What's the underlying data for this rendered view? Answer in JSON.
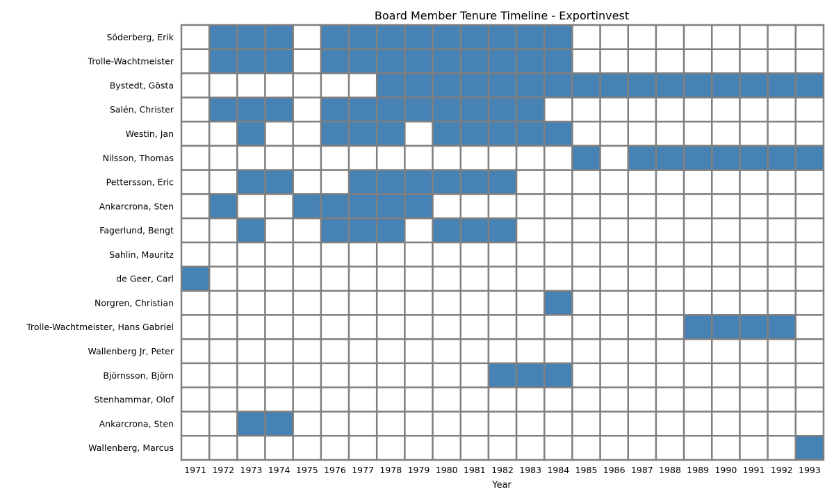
{
  "chart_data": {
    "type": "heatmap",
    "title": "Board Member Tenure Timeline - Exportinvest",
    "xlabel": "Year",
    "ylabel": "",
    "x": [
      "1971",
      "1972",
      "1973",
      "1974",
      "1975",
      "1976",
      "1977",
      "1978",
      "1979",
      "1980",
      "1981",
      "1982",
      "1983",
      "1984",
      "1985",
      "1986",
      "1987",
      "1988",
      "1989",
      "1990",
      "1991",
      "1992",
      "1993"
    ],
    "y": [
      "Söderberg, Erik",
      "Trolle-Wachtmeister",
      "Bystedt, Gösta",
      "Salén, Christer",
      "Westin, Jan",
      "Nilsson, Thomas",
      "Pettersson, Eric",
      "Ankarcrona, Sten",
      "Fagerlund, Bengt",
      "Sahlin, Mauritz",
      "de Geer, Carl",
      "Norgren, Christian",
      "Trolle-Wachtmeister, Hans Gabriel",
      "Wallenberg Jr, Peter",
      "Björnsson, Björn",
      "Stenhammar, Olof",
      "Ankarcrona, Sten",
      "Wallenberg, Marcus"
    ],
    "values": [
      [
        0,
        1,
        1,
        1,
        0,
        1,
        1,
        1,
        1,
        1,
        1,
        1,
        1,
        1,
        0,
        0,
        0,
        0,
        0,
        0,
        0,
        0,
        0
      ],
      [
        0,
        1,
        1,
        1,
        0,
        1,
        1,
        1,
        1,
        1,
        1,
        1,
        1,
        1,
        0,
        0,
        0,
        0,
        0,
        0,
        0,
        0,
        0
      ],
      [
        0,
        0,
        0,
        0,
        0,
        0,
        0,
        1,
        1,
        1,
        1,
        1,
        1,
        1,
        1,
        1,
        1,
        1,
        1,
        1,
        1,
        1,
        1
      ],
      [
        0,
        1,
        1,
        1,
        0,
        1,
        1,
        1,
        1,
        1,
        1,
        1,
        1,
        0,
        0,
        0,
        0,
        0,
        0,
        0,
        0,
        0,
        0
      ],
      [
        0,
        0,
        1,
        0,
        0,
        1,
        1,
        1,
        0,
        1,
        1,
        1,
        1,
        1,
        0,
        0,
        0,
        0,
        0,
        0,
        0,
        0,
        0
      ],
      [
        0,
        0,
        0,
        0,
        0,
        0,
        0,
        0,
        0,
        0,
        0,
        0,
        0,
        0,
        1,
        0,
        1,
        1,
        1,
        1,
        1,
        1,
        1
      ],
      [
        0,
        0,
        1,
        1,
        0,
        0,
        1,
        1,
        1,
        1,
        1,
        1,
        0,
        0,
        0,
        0,
        0,
        0,
        0,
        0,
        0,
        0,
        0
      ],
      [
        0,
        1,
        0,
        0,
        1,
        1,
        1,
        1,
        1,
        0,
        0,
        0,
        0,
        0,
        0,
        0,
        0,
        0,
        0,
        0,
        0,
        0,
        0
      ],
      [
        0,
        0,
        1,
        0,
        0,
        1,
        1,
        1,
        0,
        1,
        1,
        1,
        0,
        0,
        0,
        0,
        0,
        0,
        0,
        0,
        0,
        0,
        0
      ],
      [
        0,
        0,
        0,
        0,
        0,
        0,
        0,
        0,
        0,
        0,
        0,
        0,
        0,
        0,
        0,
        0,
        0,
        0,
        0,
        0,
        0,
        0,
        0
      ],
      [
        1,
        0,
        0,
        0,
        0,
        0,
        0,
        0,
        0,
        0,
        0,
        0,
        0,
        0,
        0,
        0,
        0,
        0,
        0,
        0,
        0,
        0,
        0
      ],
      [
        0,
        0,
        0,
        0,
        0,
        0,
        0,
        0,
        0,
        0,
        0,
        0,
        0,
        1,
        0,
        0,
        0,
        0,
        0,
        0,
        0,
        0,
        0
      ],
      [
        0,
        0,
        0,
        0,
        0,
        0,
        0,
        0,
        0,
        0,
        0,
        0,
        0,
        0,
        0,
        0,
        0,
        0,
        1,
        1,
        1,
        1,
        0
      ],
      [
        0,
        0,
        0,
        0,
        0,
        0,
        0,
        0,
        0,
        0,
        0,
        0,
        0,
        0,
        0,
        0,
        0,
        0,
        0,
        0,
        0,
        0,
        0
      ],
      [
        0,
        0,
        0,
        0,
        0,
        0,
        0,
        0,
        0,
        0,
        0,
        1,
        1,
        1,
        0,
        0,
        0,
        0,
        0,
        0,
        0,
        0,
        0
      ],
      [
        0,
        0,
        0,
        0,
        0,
        0,
        0,
        0,
        0,
        0,
        0,
        0,
        0,
        0,
        0,
        0,
        0,
        0,
        0,
        0,
        0,
        0,
        0
      ],
      [
        0,
        0,
        1,
        1,
        0,
        0,
        0,
        0,
        0,
        0,
        0,
        0,
        0,
        0,
        0,
        0,
        0,
        0,
        0,
        0,
        0,
        0,
        0
      ],
      [
        0,
        0,
        0,
        0,
        0,
        0,
        0,
        0,
        0,
        0,
        0,
        0,
        0,
        0,
        0,
        0,
        0,
        0,
        0,
        0,
        0,
        0,
        1
      ]
    ],
    "colors": {
      "active": "#4682b4",
      "inactive": "#ffffff",
      "cell_border": "#808080"
    },
    "legend": "none",
    "grid": true
  }
}
